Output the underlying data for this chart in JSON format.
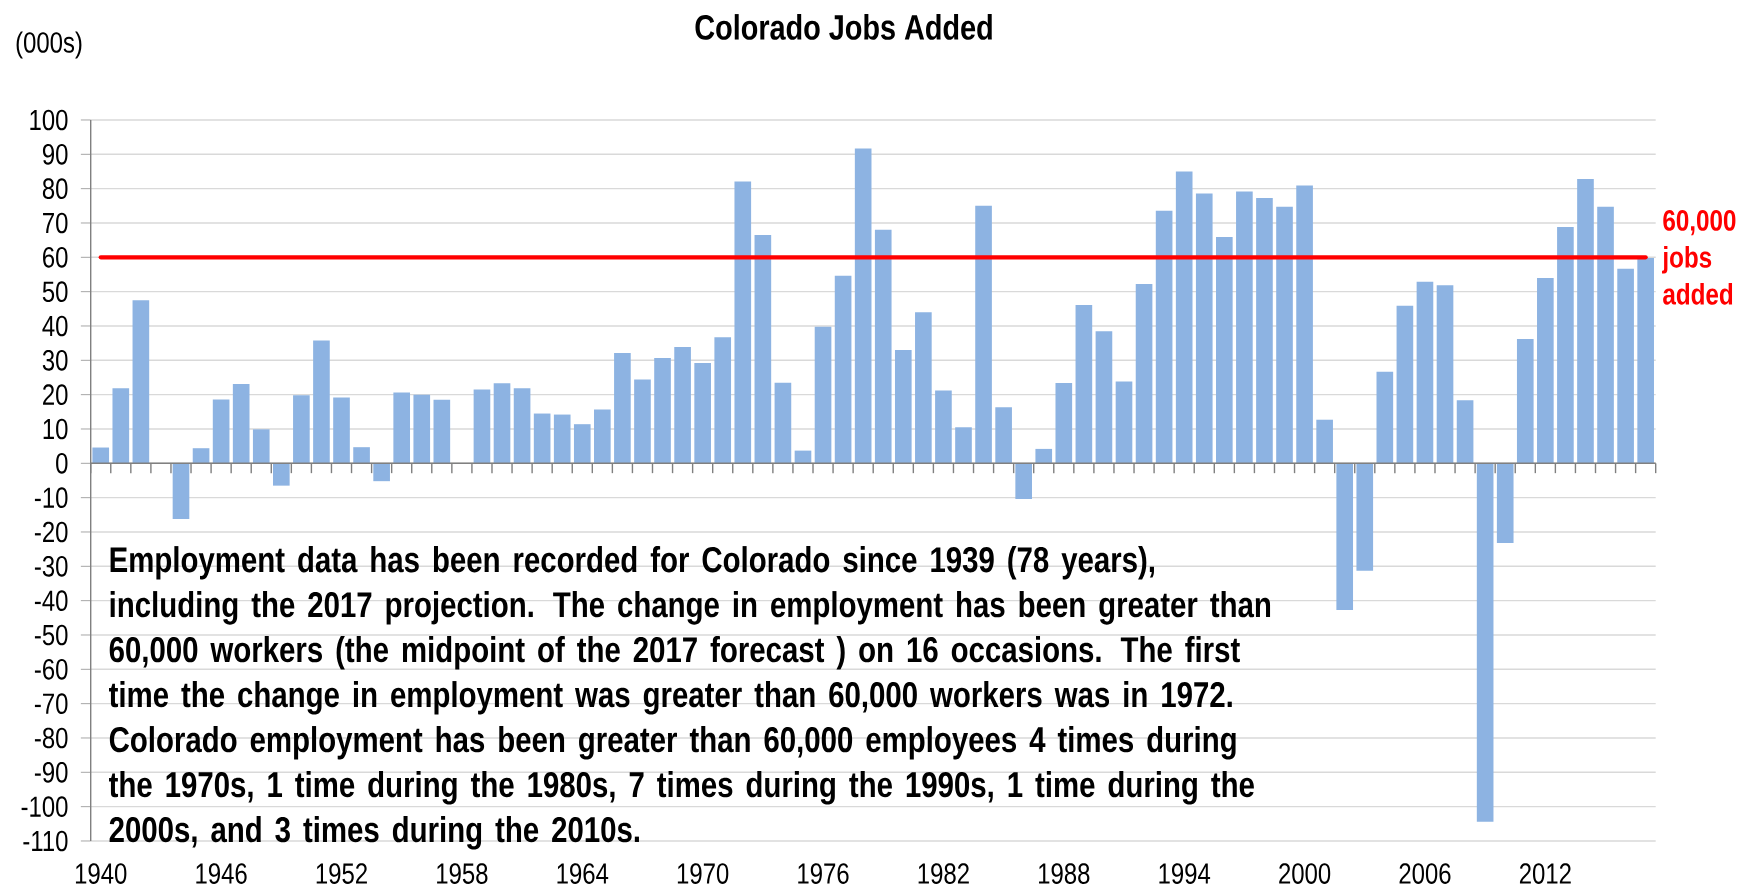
{
  "chart_data": {
    "type": "bar",
    "title": "Colorado Jobs Added",
    "ylabel": "(000s)",
    "categories": [
      "1940",
      null,
      null,
      null,
      null,
      null,
      "1946",
      null,
      null,
      null,
      null,
      null,
      "1952",
      null,
      null,
      null,
      null,
      null,
      "1958",
      null,
      null,
      null,
      null,
      null,
      "1964",
      null,
      null,
      null,
      null,
      null,
      "1970",
      null,
      null,
      null,
      null,
      null,
      "1976",
      null,
      null,
      null,
      null,
      null,
      "1982",
      null,
      null,
      null,
      null,
      null,
      "1988",
      null,
      null,
      null,
      null,
      null,
      "1994",
      null,
      null,
      null,
      null,
      null,
      "2000",
      null,
      null,
      null,
      null,
      null,
      "2006",
      null,
      null,
      null,
      null,
      null,
      "2012",
      null,
      null,
      null,
      null,
      null
    ],
    "values": [
      4.6,
      21.9,
      47.5,
      0,
      -16.2,
      4.4,
      18.6,
      23.1,
      9.9,
      -6.5,
      19.8,
      35.8,
      19.2,
      4.7,
      -5.2,
      20.6,
      20.0,
      18.5,
      null,
      21.5,
      23.3,
      21.9,
      14.5,
      14.2,
      11.4,
      15.7,
      32.1,
      24.4,
      30.7,
      33.9,
      29.2,
      36.7,
      82.1,
      66.5,
      23.5,
      3.7,
      39.8,
      54.6,
      91.7,
      68.0,
      33.0,
      44.0,
      21.2,
      10.5,
      75.0,
      16.3,
      -10.4,
      4.2,
      23.4,
      46.1,
      38.5,
      23.8,
      52.2,
      73.6,
      85.0,
      78.6,
      65.9,
      79.2,
      77.3,
      74.7,
      80.9,
      12.7,
      -42.7,
      -31.3,
      26.7,
      45.9,
      52.9,
      51.9,
      18.4,
      -104.4,
      -23.2,
      36.2,
      54.0,
      68.8,
      82.8,
      74.7,
      56.7,
      59.8
    ],
    "color": "#8db3e2",
    "ylim": [
      -110,
      100
    ],
    "yticks": [
      -110,
      -100,
      -90,
      -80,
      -70,
      -60,
      -50,
      -40,
      -30,
      -20,
      -10,
      0,
      10,
      20,
      30,
      40,
      50,
      60,
      70,
      80,
      90,
      100
    ],
    "grid": "y",
    "ref_lines": [
      {
        "axis": "y",
        "value": 60,
        "label": "60,000 jobs added",
        "color": "#ff0000"
      }
    ],
    "annotations": [
      "Employment data has been recorded for Colorado since 1939 (78 years), including the 2017 projection. The change in employment has been greater than 60,000 workers (the midpoint of the 2017 forecast ) on 16 occasions. The first time the change in employment was greater than 60,000 workers was in 1972. Colorado employment has been greater than 60,000 employees 4 times during the 1970s, 1 time during the 1980s, 7 times during the 1990s, 1 time during the 2000s, and 3 times during the 2010s."
    ]
  }
}
